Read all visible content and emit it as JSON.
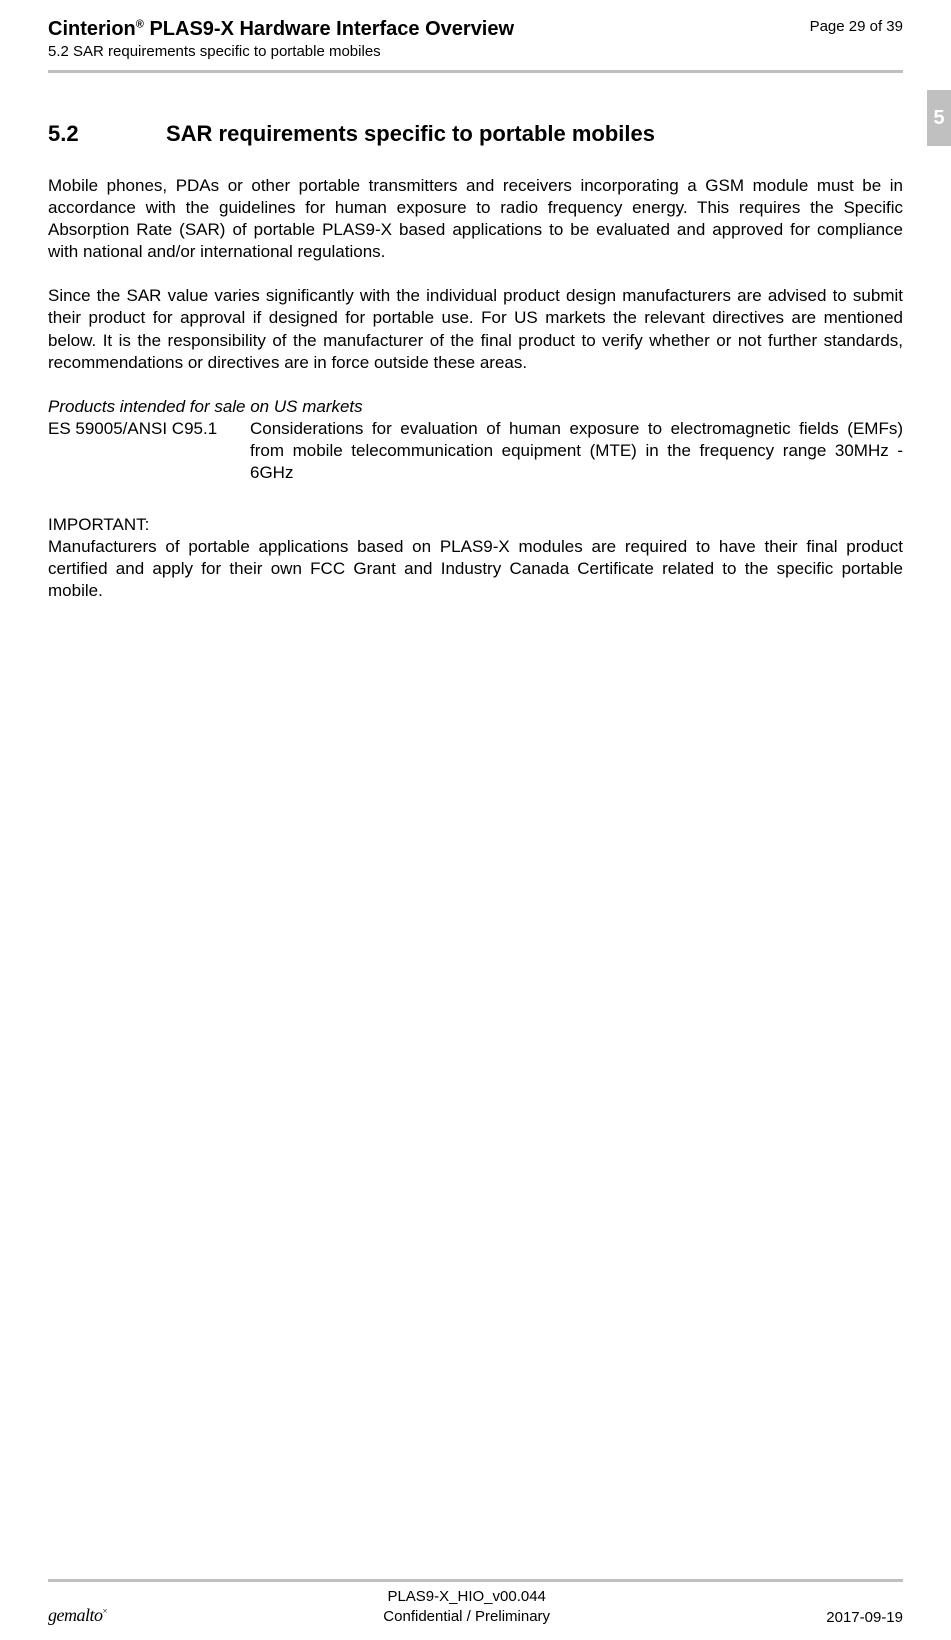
{
  "header": {
    "title_prefix": "Cinterion",
    "title_suffix": " PLAS9-X Hardware Interface Overview",
    "subtitle": "5.2 SAR requirements specific to portable mobiles",
    "page_indicator": "Page 29 of 39"
  },
  "side_tab": "5",
  "section": {
    "number": "5.2",
    "title": "SAR requirements specific to portable mobiles"
  },
  "paragraphs": {
    "p1": "Mobile phones, PDAs or other portable transmitters and receivers incorporating a GSM module must be in accordance with the guidelines for human exposure to radio frequency energy. This requires the Specific Absorption Rate (SAR) of portable PLAS9-X based applications to be evaluated and approved for compliance with national and/or international regulations.",
    "p2": "Since the SAR value varies significantly with the individual product design manufacturers are advised to submit their product for approval if designed for portable use. For US markets the relevant directives are mentioned below. It is the responsibility of the manufacturer of the final product to verify whether or not further standards, recommendations or directives are in force outside these areas.",
    "italic_line": "Products intended for sale on US markets",
    "standard_label": "ES 59005/ANSI C95.1",
    "standard_desc": "Considerations for evaluation of human exposure to electromagnetic fields (EMFs) from mobile telecommunication equipment (MTE) in the frequency range 30MHz - 6GHz",
    "important_label": "IMPORTANT:",
    "important_text": "Manufacturers of portable applications based on PLAS9-X modules are required to have their final product certified and apply for their own FCC Grant and Industry Canada Certificate related to the specific portable mobile."
  },
  "footer": {
    "brand": "gemalto",
    "brand_mark": "×",
    "doc_id": "PLAS9-X_HIO_v00.044",
    "confidentiality": "Confidential / Preliminary",
    "date": "2017-09-19"
  },
  "colors": {
    "divider": "#c0c0c0",
    "text": "#000000",
    "background": "#ffffff",
    "tab_bg": "#c0c0c0",
    "tab_text": "#ffffff"
  }
}
